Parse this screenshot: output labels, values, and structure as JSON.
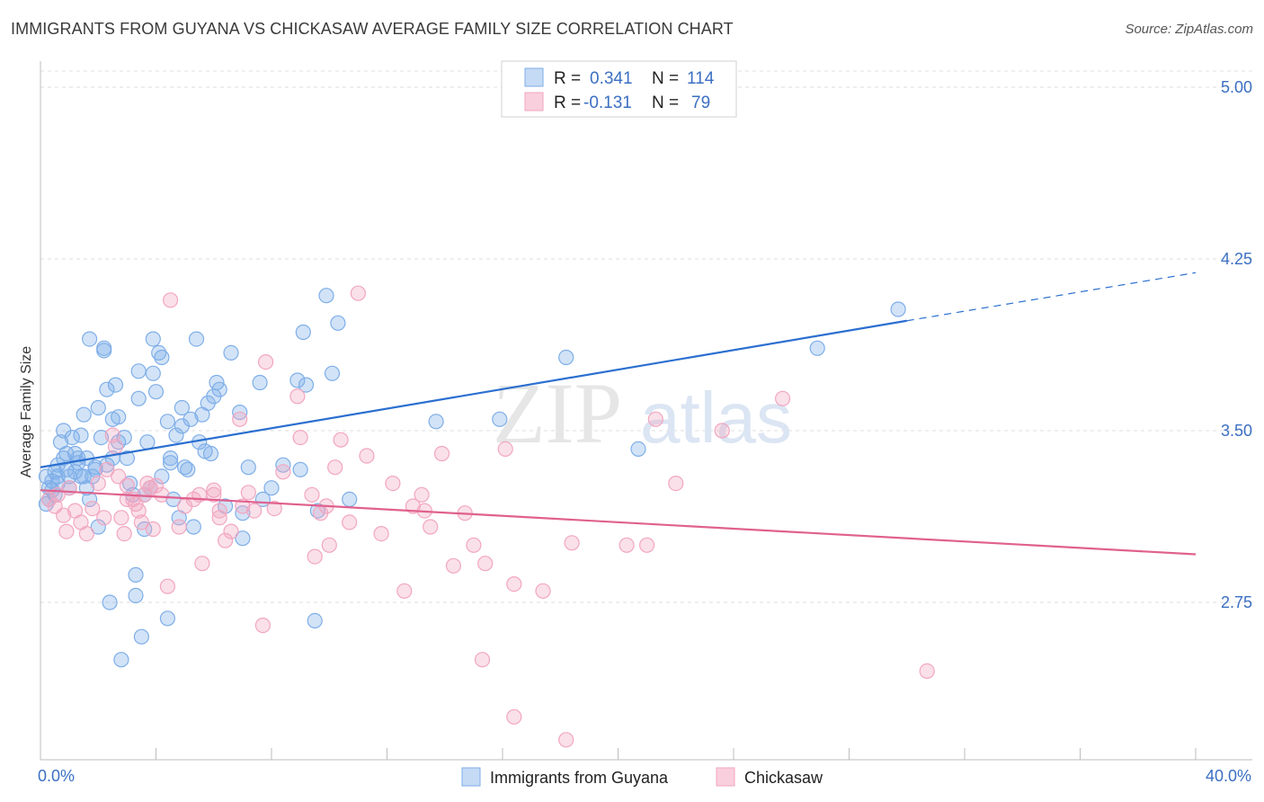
{
  "title": "IMMIGRANTS FROM GUYANA VS CHICKASAW AVERAGE FAMILY SIZE CORRELATION CHART",
  "source": "Source: ZipAtlas.com",
  "watermark": {
    "zip": "ZIP",
    "atlas": "atlas"
  },
  "legend": {
    "r_label": "R =",
    "n_label": "N =",
    "rows": [
      {
        "r": "0.341",
        "n": "114",
        "color": "#7eaee8"
      },
      {
        "r": "-0.131",
        "n": "79",
        "color": "#f2a6c0"
      }
    ]
  },
  "bottom_legend": [
    "Immigrants from Guyana",
    "Chickasaw"
  ],
  "chart_data": {
    "type": "scatter",
    "ylabel": "Average Family Size",
    "xlim": [
      0,
      40
    ],
    "ylim": [
      2.0,
      5.1
    ],
    "x_tick_labels": [
      "0.0%",
      "40.0%"
    ],
    "y_ticks": [
      2.75,
      3.5,
      4.25,
      5.0
    ],
    "y_tick_labels": [
      "2.75",
      "3.50",
      "4.25",
      "5.00"
    ],
    "grid": true,
    "series": [
      {
        "name": "Immigrants from Guyana",
        "color": "#7eaee8",
        "line_color": "#2b6fd0",
        "trend": {
          "x0": 0,
          "y0": 3.34,
          "x1": 30,
          "y1": 3.98,
          "dash_to_x": 40,
          "dash_to_y": 4.19
        },
        "points": [
          [
            0.2,
            3.3
          ],
          [
            0.3,
            3.25
          ],
          [
            0.3,
            3.2
          ],
          [
            0.4,
            3.28
          ],
          [
            0.5,
            3.32
          ],
          [
            0.5,
            3.22
          ],
          [
            0.6,
            3.35
          ],
          [
            0.6,
            3.3
          ],
          [
            0.7,
            3.45
          ],
          [
            0.8,
            3.5
          ],
          [
            0.8,
            3.38
          ],
          [
            0.9,
            3.33
          ],
          [
            1.0,
            3.3
          ],
          [
            1.0,
            3.25
          ],
          [
            1.1,
            3.47
          ],
          [
            1.2,
            3.4
          ],
          [
            1.2,
            3.32
          ],
          [
            1.3,
            3.36
          ],
          [
            1.4,
            3.3
          ],
          [
            1.4,
            3.48
          ],
          [
            1.5,
            3.57
          ],
          [
            1.6,
            3.38
          ],
          [
            1.6,
            3.25
          ],
          [
            1.7,
            3.9
          ],
          [
            1.8,
            3.3
          ],
          [
            1.9,
            3.33
          ],
          [
            2.0,
            3.6
          ],
          [
            2.0,
            3.08
          ],
          [
            2.1,
            3.47
          ],
          [
            2.2,
            3.85
          ],
          [
            2.3,
            3.35
          ],
          [
            2.4,
            2.75
          ],
          [
            2.5,
            3.38
          ],
          [
            2.5,
            3.55
          ],
          [
            2.6,
            3.7
          ],
          [
            2.7,
            3.45
          ],
          [
            2.8,
            2.5
          ],
          [
            2.9,
            3.47
          ],
          [
            3.0,
            3.38
          ],
          [
            3.1,
            3.27
          ],
          [
            3.3,
            2.87
          ],
          [
            3.3,
            2.78
          ],
          [
            3.4,
            3.64
          ],
          [
            3.4,
            3.76
          ],
          [
            3.5,
            2.6
          ],
          [
            3.6,
            3.07
          ],
          [
            3.7,
            3.45
          ],
          [
            3.8,
            3.25
          ],
          [
            3.9,
            3.9
          ],
          [
            3.9,
            3.75
          ],
          [
            4.0,
            3.67
          ],
          [
            4.1,
            3.84
          ],
          [
            4.2,
            3.82
          ],
          [
            4.2,
            3.3
          ],
          [
            4.4,
            2.68
          ],
          [
            4.4,
            3.54
          ],
          [
            4.5,
            3.38
          ],
          [
            4.5,
            3.36
          ],
          [
            4.6,
            3.2
          ],
          [
            4.8,
            3.12
          ],
          [
            4.9,
            3.52
          ],
          [
            4.9,
            3.6
          ],
          [
            5.0,
            3.34
          ],
          [
            5.2,
            3.55
          ],
          [
            5.3,
            3.08
          ],
          [
            5.4,
            3.9
          ],
          [
            5.5,
            3.45
          ],
          [
            5.6,
            3.57
          ],
          [
            5.8,
            3.62
          ],
          [
            5.9,
            3.4
          ],
          [
            6.0,
            3.65
          ],
          [
            6.1,
            3.71
          ],
          [
            6.2,
            3.68
          ],
          [
            6.6,
            3.84
          ],
          [
            6.9,
            3.58
          ],
          [
            7.0,
            3.14
          ],
          [
            7.0,
            3.03
          ],
          [
            7.6,
            3.71
          ],
          [
            7.7,
            3.2
          ],
          [
            8.0,
            3.25
          ],
          [
            8.9,
            3.72
          ],
          [
            9.0,
            3.33
          ],
          [
            9.1,
            3.93
          ],
          [
            9.2,
            3.7
          ],
          [
            9.5,
            2.67
          ],
          [
            9.9,
            4.09
          ],
          [
            10.1,
            3.75
          ],
          [
            10.3,
            3.97
          ],
          [
            10.7,
            3.2
          ],
          [
            13.7,
            3.54
          ],
          [
            15.9,
            3.55
          ],
          [
            18.2,
            3.82
          ],
          [
            20.7,
            3.42
          ],
          [
            26.9,
            3.86
          ],
          [
            29.7,
            4.03
          ],
          [
            0.2,
            3.18
          ],
          [
            0.4,
            3.24
          ],
          [
            0.6,
            3.27
          ],
          [
            0.9,
            3.4
          ],
          [
            1.3,
            3.38
          ],
          [
            1.5,
            3.3
          ],
          [
            1.7,
            3.2
          ],
          [
            1.9,
            3.34
          ],
          [
            2.2,
            3.86
          ],
          [
            2.7,
            3.56
          ],
          [
            3.2,
            3.22
          ],
          [
            3.6,
            3.22
          ],
          [
            4.7,
            3.48
          ],
          [
            5.1,
            3.33
          ],
          [
            5.7,
            3.41
          ],
          [
            6.4,
            3.17
          ],
          [
            7.2,
            3.34
          ],
          [
            8.4,
            3.35
          ],
          [
            9.6,
            3.15
          ],
          [
            2.3,
            3.68
          ]
        ]
      },
      {
        "name": "Chickasaw",
        "color": "#f2a6c0",
        "line_color": "#e0618e",
        "trend": {
          "x0": 0,
          "y0": 3.24,
          "x1": 40,
          "y1": 2.96
        },
        "points": [
          [
            0.3,
            3.2
          ],
          [
            0.5,
            3.17
          ],
          [
            0.6,
            3.22
          ],
          [
            0.8,
            3.13
          ],
          [
            0.9,
            3.06
          ],
          [
            1.0,
            3.25
          ],
          [
            1.2,
            3.15
          ],
          [
            1.4,
            3.1
          ],
          [
            1.6,
            3.05
          ],
          [
            1.8,
            3.16
          ],
          [
            2.0,
            3.27
          ],
          [
            2.2,
            3.12
          ],
          [
            2.3,
            3.33
          ],
          [
            2.5,
            3.48
          ],
          [
            2.6,
            3.43
          ],
          [
            2.7,
            3.3
          ],
          [
            2.8,
            3.12
          ],
          [
            2.9,
            3.05
          ],
          [
            3.0,
            3.26
          ],
          [
            3.2,
            3.2
          ],
          [
            3.3,
            3.18
          ],
          [
            3.4,
            3.15
          ],
          [
            3.5,
            3.1
          ],
          [
            3.6,
            3.22
          ],
          [
            3.7,
            3.27
          ],
          [
            3.8,
            3.25
          ],
          [
            3.9,
            3.07
          ],
          [
            4.0,
            3.26
          ],
          [
            4.2,
            3.22
          ],
          [
            4.4,
            2.82
          ],
          [
            4.5,
            4.07
          ],
          [
            4.8,
            3.08
          ],
          [
            5.0,
            3.17
          ],
          [
            5.3,
            3.2
          ],
          [
            5.5,
            3.22
          ],
          [
            5.6,
            2.92
          ],
          [
            6.0,
            3.24
          ],
          [
            6.2,
            3.12
          ],
          [
            6.4,
            3.02
          ],
          [
            6.6,
            3.06
          ],
          [
            6.9,
            3.55
          ],
          [
            7.0,
            3.17
          ],
          [
            7.2,
            3.23
          ],
          [
            7.4,
            3.15
          ],
          [
            7.7,
            2.65
          ],
          [
            7.8,
            3.8
          ],
          [
            8.1,
            3.16
          ],
          [
            8.4,
            3.32
          ],
          [
            8.9,
            3.65
          ],
          [
            9.0,
            3.47
          ],
          [
            9.4,
            3.22
          ],
          [
            9.7,
            3.14
          ],
          [
            9.9,
            3.17
          ],
          [
            10.2,
            3.34
          ],
          [
            10.4,
            3.46
          ],
          [
            10.7,
            3.1
          ],
          [
            11.0,
            4.1
          ],
          [
            11.3,
            3.39
          ],
          [
            11.8,
            3.05
          ],
          [
            12.2,
            3.27
          ],
          [
            12.6,
            2.8
          ],
          [
            13.2,
            3.22
          ],
          [
            13.3,
            3.15
          ],
          [
            13.5,
            3.08
          ],
          [
            13.9,
            3.4
          ],
          [
            14.3,
            2.91
          ],
          [
            14.7,
            3.14
          ],
          [
            15.0,
            3.0
          ],
          [
            15.4,
            2.92
          ],
          [
            15.3,
            2.5
          ],
          [
            16.1,
            3.42
          ],
          [
            16.4,
            2.25
          ],
          [
            17.4,
            2.8
          ],
          [
            18.2,
            2.15
          ],
          [
            18.4,
            3.01
          ],
          [
            20.3,
            3.0
          ],
          [
            21.0,
            3.0
          ],
          [
            21.3,
            3.55
          ],
          [
            22.0,
            3.27
          ],
          [
            23.6,
            3.5
          ],
          [
            25.7,
            3.64
          ],
          [
            30.7,
            2.45
          ],
          [
            3.0,
            3.2
          ],
          [
            6.0,
            3.22
          ],
          [
            9.5,
            2.95
          ],
          [
            12.9,
            3.17
          ],
          [
            16.4,
            2.83
          ],
          [
            6.2,
            3.15
          ],
          [
            10.0,
            3.0
          ]
        ]
      }
    ]
  }
}
